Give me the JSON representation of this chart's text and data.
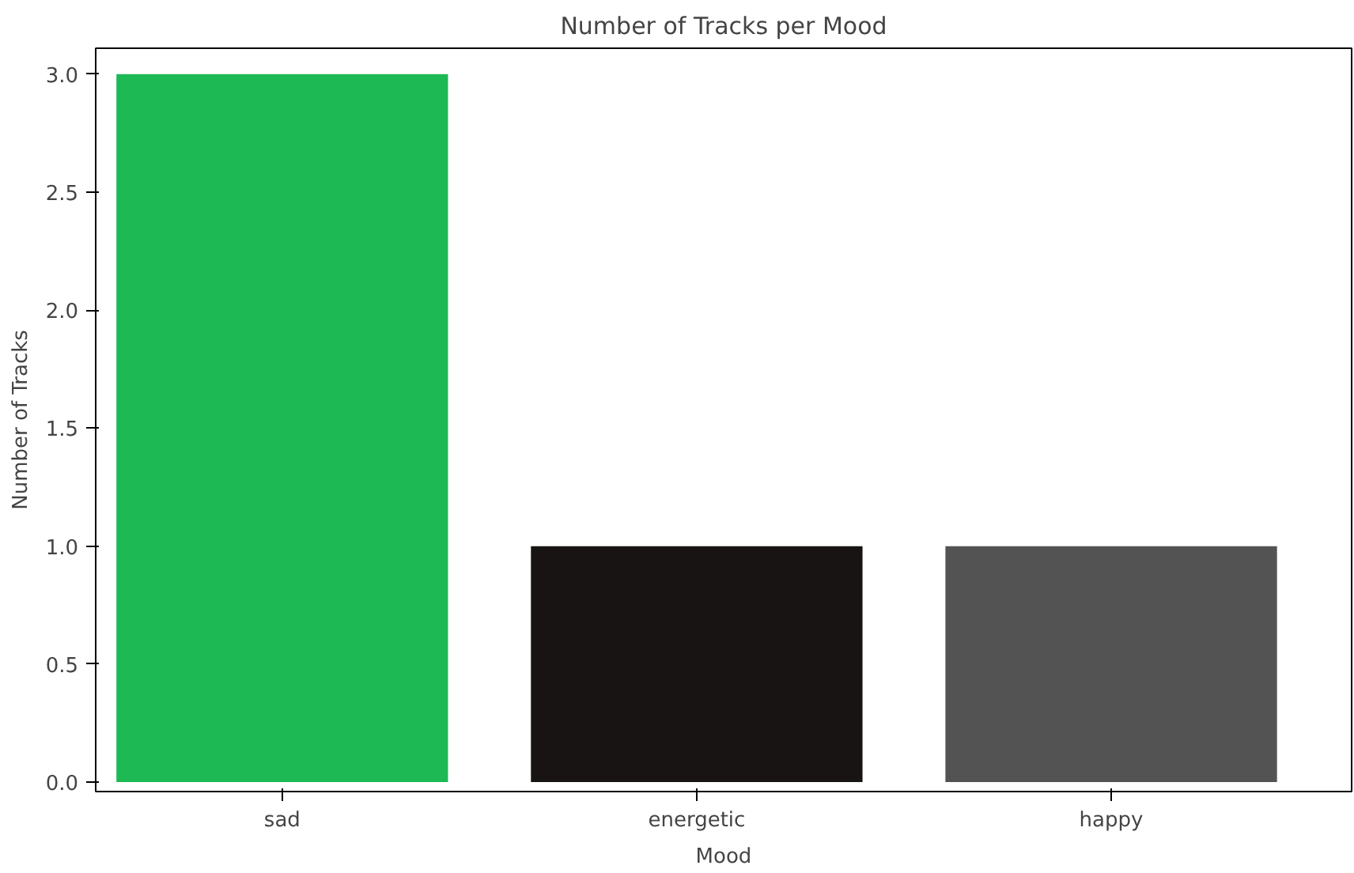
{
  "chart_data": {
    "type": "bar",
    "title": "Number of Tracks per Mood",
    "xlabel": "Mood",
    "ylabel": "Number of Tracks",
    "categories": [
      "sad",
      "energetic",
      "happy"
    ],
    "values": [
      3,
      1,
      1
    ],
    "colors": [
      "#1db954",
      "#191414",
      "#535353"
    ],
    "ylim": [
      -0.04,
      3.11
    ],
    "yticks": [
      {
        "value": 0,
        "label": "0.0"
      },
      {
        "value": 0.5,
        "label": "0.5"
      },
      {
        "value": 1,
        "label": "1.0"
      },
      {
        "value": 1.5,
        "label": "1.5"
      },
      {
        "value": 2,
        "label": "2.0"
      },
      {
        "value": 2.5,
        "label": "2.5"
      },
      {
        "value": 3,
        "label": "3.0"
      }
    ],
    "grid": false
  }
}
